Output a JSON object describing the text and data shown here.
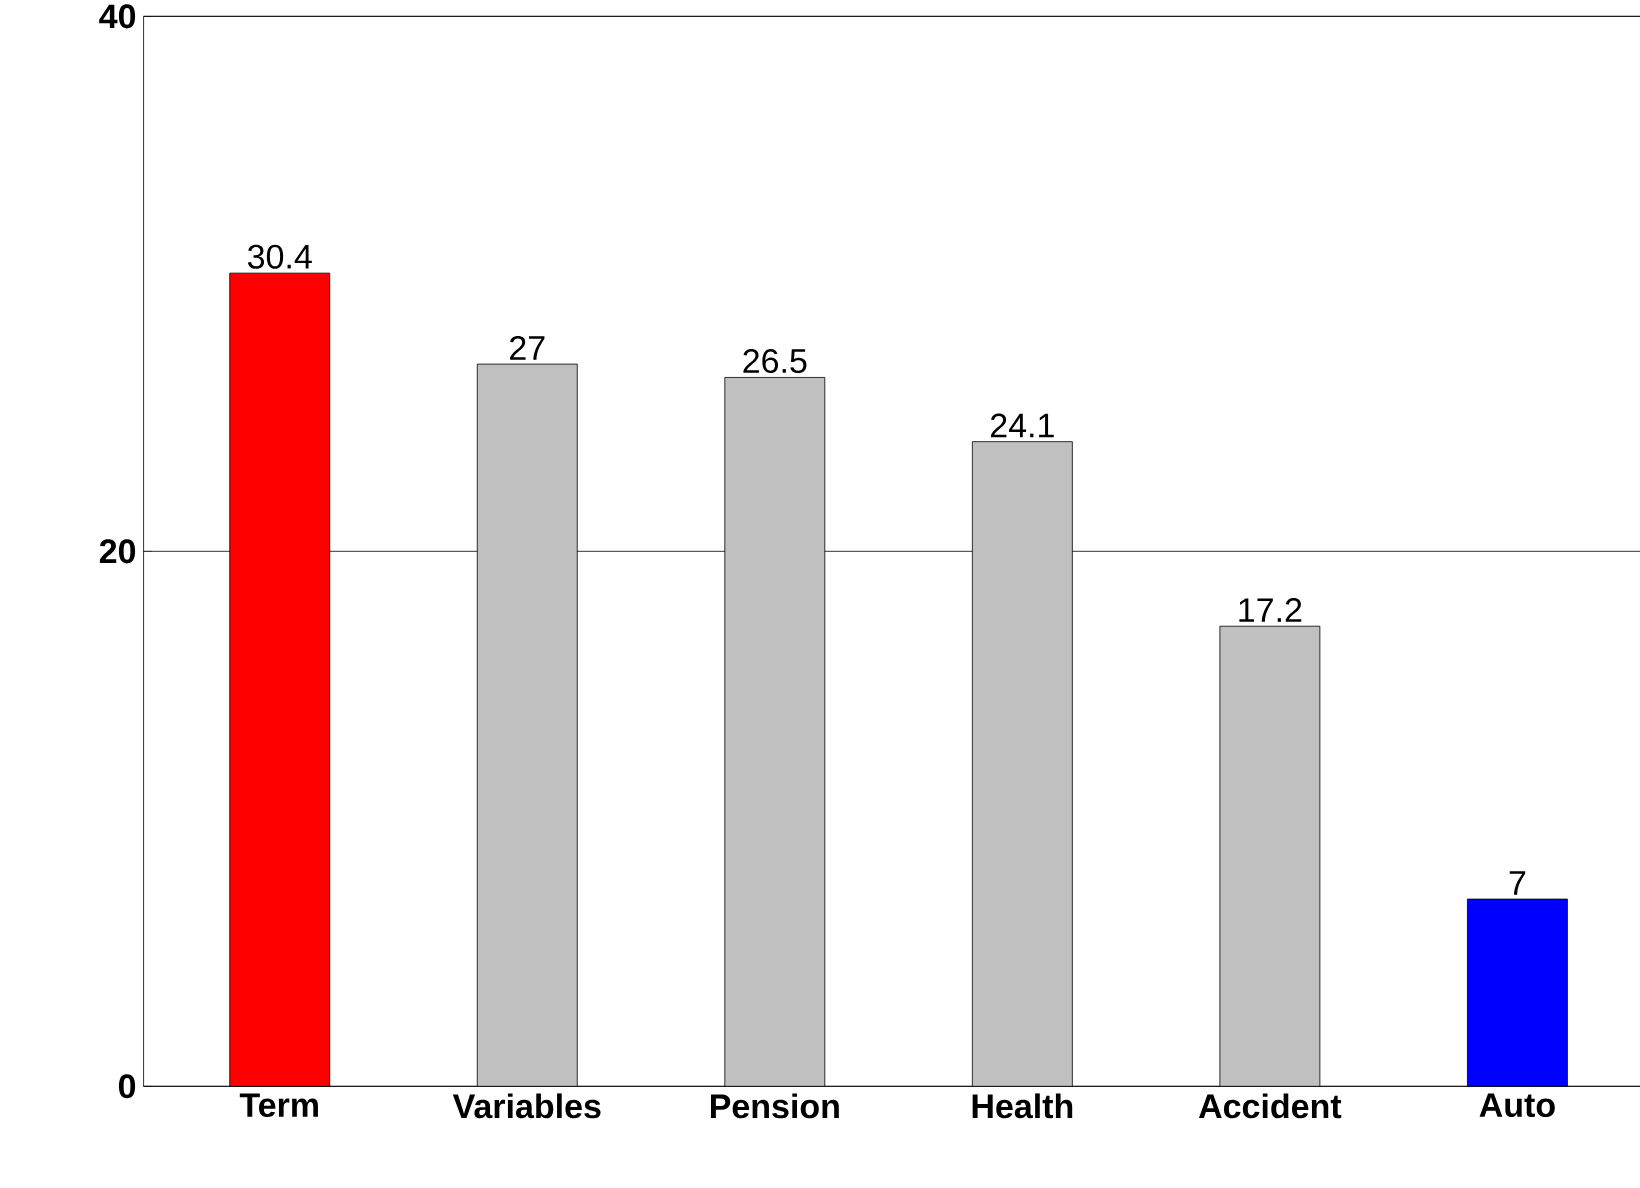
{
  "chart_data": {
    "type": "bar",
    "categories": [
      "Term",
      "Variables",
      "Pension",
      "Health",
      "Accident",
      "Auto"
    ],
    "values": [
      30.4,
      27,
      26.5,
      24.1,
      17.2,
      7
    ],
    "colors": [
      "#ff0000",
      "#c0c0c0",
      "#c0c0c0",
      "#c0c0c0",
      "#c0c0c0",
      "#0000ff"
    ],
    "ylim": [
      0,
      40
    ],
    "yticks": [
      0,
      20,
      40
    ],
    "grid": "y",
    "data_labels": true
  }
}
